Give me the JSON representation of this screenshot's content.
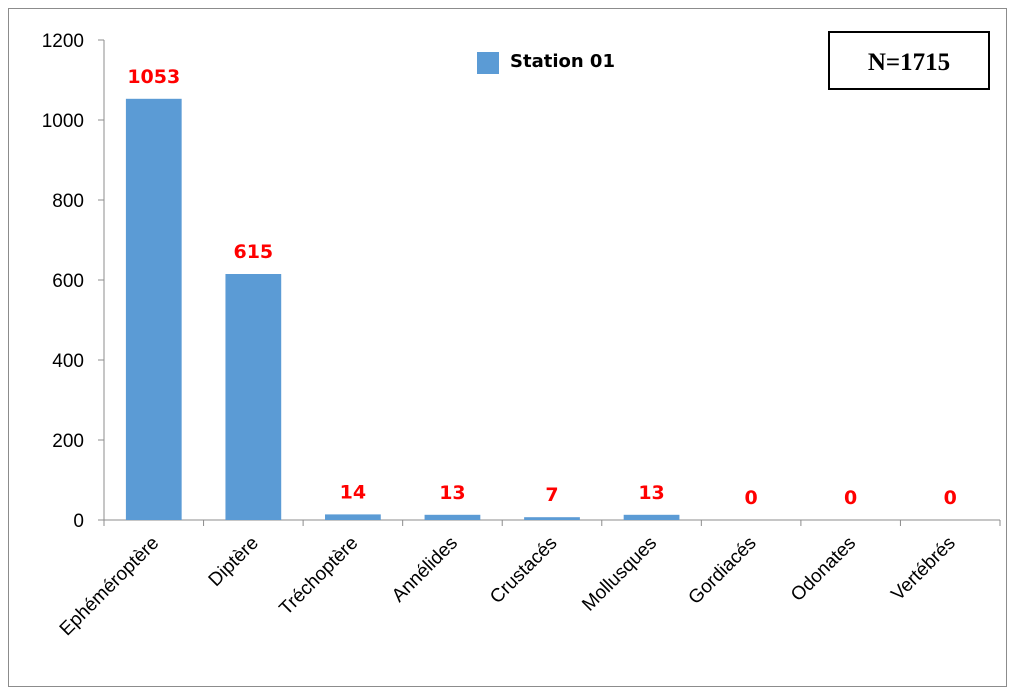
{
  "chart_data": {
    "type": "bar",
    "categories": [
      "Ephéméroptère",
      "Diptère",
      "Tréchoptère",
      "Annélides",
      "Crustacés",
      "Mollusques",
      "Gordiacés",
      "Odonates",
      "Vertébrés"
    ],
    "series": [
      {
        "name": "Station 01",
        "values": [
          1053,
          615,
          14,
          13,
          7,
          13,
          0,
          0,
          0
        ]
      }
    ],
    "data_labels": [
      "1053",
      "615",
      "14",
      "13",
      "7",
      "13",
      "0",
      "0",
      "0"
    ],
    "yticks": [
      "0",
      "200",
      "400",
      "600",
      "800",
      "1000",
      "1200"
    ],
    "ylim": [
      0,
      1200
    ],
    "legend_position": "top-center",
    "annotation": "N=1715",
    "grid": false,
    "colors": {
      "bar": "#5b9bd5",
      "data_label": "#ff0000",
      "axis": "#8c8c8c"
    }
  }
}
